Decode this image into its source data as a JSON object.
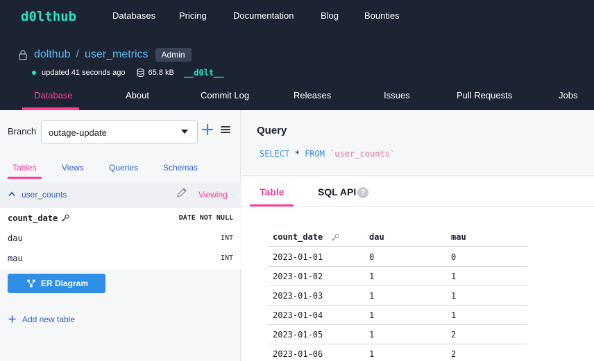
{
  "header": {
    "logo": "d0lthub",
    "nav": [
      "Databases",
      "Pricing",
      "Documentation",
      "Blog",
      "Bounties"
    ],
    "repo_owner": "dolthub",
    "repo_separator": "/",
    "repo_name": "user_metrics",
    "role_badge": "Admin",
    "updated": "updated 41 seconds ago",
    "size": "65.8 kB",
    "dolt_mark": "__d0lt__",
    "tabs": [
      "Database",
      "About",
      "Commit Log",
      "Releases",
      "Issues",
      "Pull Requests",
      "Jobs"
    ],
    "active_tab": "Database"
  },
  "left": {
    "branch_label": "Branch",
    "branch_value": "outage-update",
    "tabs": [
      "Tables",
      "Views",
      "Queries",
      "Schemas"
    ],
    "active_tab": "Tables",
    "table_name": "user_counts",
    "viewing": "Viewing",
    "columns": [
      {
        "name": "count_date",
        "type": "DATE NOT NULL",
        "primary_key": true
      },
      {
        "name": "dau",
        "type": "INT",
        "primary_key": false
      },
      {
        "name": "mau",
        "type": "INT",
        "primary_key": false
      }
    ],
    "er_button": "ER Diagram",
    "add_table": "Add new table"
  },
  "query": {
    "title": "Query",
    "sql": {
      "select": "SELECT",
      "star": "*",
      "from": "FROM",
      "table": "`user_counts`"
    }
  },
  "results": {
    "tabs": [
      "Table",
      "SQL API"
    ],
    "active_tab": "Table",
    "help": "?",
    "headers": [
      "count_date",
      "dau",
      "mau"
    ],
    "rows": [
      [
        "2023-01-01",
        "0",
        "0"
      ],
      [
        "2023-01-02",
        "1",
        "1"
      ],
      [
        "2023-01-03",
        "1",
        "1"
      ],
      [
        "2023-01-04",
        "1",
        "1"
      ],
      [
        "2023-01-05",
        "1",
        "2"
      ],
      [
        "2023-01-06",
        "1",
        "2"
      ]
    ]
  },
  "colors": {
    "header_bg": "#1c2333",
    "accent_pink": "#ff3b9a",
    "accent_teal": "#29e3c1",
    "link_blue": "#2a63c9",
    "button_blue": "#2f8ee6"
  }
}
